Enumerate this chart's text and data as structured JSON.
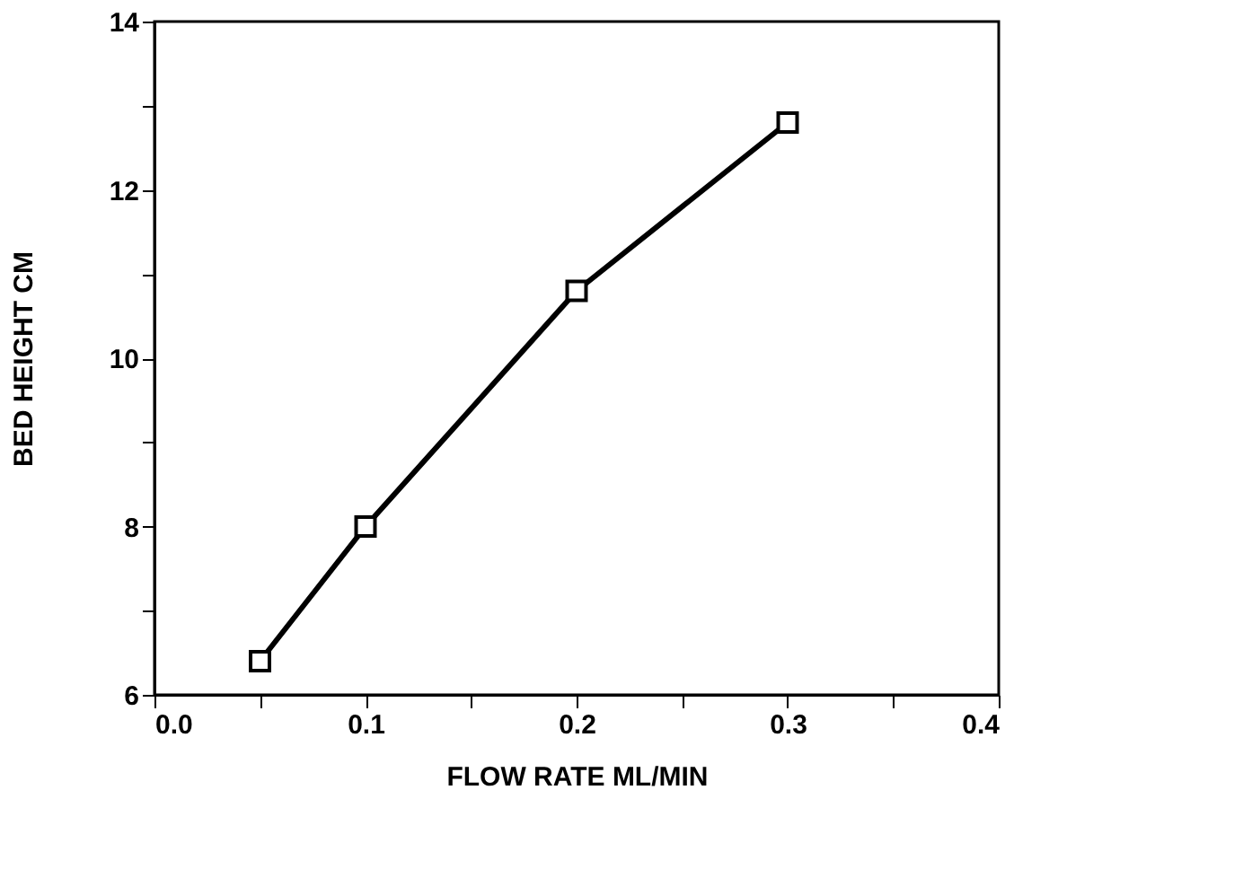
{
  "chart_data": {
    "type": "line",
    "xlabel": "FLOW RATE ML/MIN",
    "ylabel": "BED HEIGHT CM",
    "x": [
      0.05,
      0.1,
      0.2,
      0.3
    ],
    "series": [
      {
        "color": "#000000",
        "values": [
          6.4,
          8.0,
          10.8,
          12.8
        ]
      }
    ],
    "xlim": [
      0,
      0.4
    ],
    "xticks": [
      {
        "value": 0,
        "label": "0.0"
      },
      {
        "value": 0.05,
        "label": null
      },
      {
        "value": 0.1,
        "label": "0.1"
      },
      {
        "value": 0.15,
        "label": null
      },
      {
        "value": 0.2,
        "label": "0.2"
      },
      {
        "value": 0.25,
        "label": null
      },
      {
        "value": 0.3,
        "label": "0.3"
      },
      {
        "value": 0.35,
        "label": null
      },
      {
        "value": 0.4,
        "label": "0.4"
      }
    ],
    "ylim": [
      6,
      14
    ],
    "yticks": [
      6,
      {
        "value": 7,
        "label": null
      },
      8,
      {
        "value": 9,
        "label": null
      },
      10,
      {
        "value": 11,
        "label": null
      },
      12,
      {
        "value": 13,
        "label": null
      },
      14
    ],
    "marker": "square",
    "line_style": "solid",
    "grid": false
  }
}
